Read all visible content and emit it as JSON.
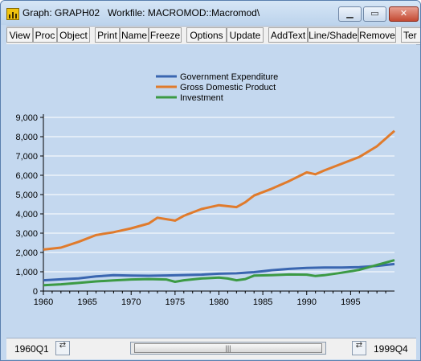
{
  "window": {
    "title": "Graph: GRAPH02   Workfile: MACROMOD::Macromod\\",
    "minimize_label": "▁",
    "maximize_label": "▭",
    "close_label": "✕"
  },
  "toolbar": {
    "buttons": [
      "View",
      "Proc",
      "Object",
      "Print",
      "Name",
      "Freeze",
      "Options",
      "Update",
      "AddText",
      "Line/Shade",
      "Remove",
      "Ter"
    ]
  },
  "status": {
    "start_date": "1960Q1",
    "end_date": "1999Q4",
    "thumb_grip": "|||"
  },
  "colors": {
    "gov": "#3a66b0",
    "gdp": "#e07b2c",
    "inv": "#3c9a44",
    "background": "#c4d8ef"
  },
  "icons": {
    "app": "graph-app-icon",
    "left": "arrow-left-icon",
    "right": "arrow-right-icon"
  },
  "chart_data": {
    "type": "line",
    "title": "",
    "xlabel": "",
    "ylabel": "",
    "grid": true,
    "legend_position": "top-center",
    "x_ticks": [
      "1960",
      "1965",
      "1970",
      "1975",
      "1980",
      "1985",
      "1990",
      "1995"
    ],
    "y_ticks": [
      "0",
      "1,000",
      "2,000",
      "3,000",
      "4,000",
      "5,000",
      "6,000",
      "7,000",
      "8,000",
      "9,000"
    ],
    "xlim": [
      1960,
      2000
    ],
    "ylim": [
      0,
      9000
    ],
    "series": [
      {
        "name": "Government Expenditure",
        "points": [
          [
            1960,
            560
          ],
          [
            1962,
            610
          ],
          [
            1964,
            660
          ],
          [
            1966,
            760
          ],
          [
            1968,
            820
          ],
          [
            1970,
            800
          ],
          [
            1972,
            790
          ],
          [
            1974,
            810
          ],
          [
            1976,
            830
          ],
          [
            1978,
            850
          ],
          [
            1980,
            900
          ],
          [
            1982,
            920
          ],
          [
            1984,
            980
          ],
          [
            1986,
            1080
          ],
          [
            1988,
            1150
          ],
          [
            1990,
            1200
          ],
          [
            1992,
            1220
          ],
          [
            1994,
            1220
          ],
          [
            1996,
            1240
          ],
          [
            1998,
            1300
          ],
          [
            2000,
            1400
          ]
        ]
      },
      {
        "name": "Gross Domestic Product",
        "points": [
          [
            1960,
            2150
          ],
          [
            1962,
            2250
          ],
          [
            1964,
            2550
          ],
          [
            1966,
            2900
          ],
          [
            1968,
            3050
          ],
          [
            1970,
            3250
          ],
          [
            1972,
            3500
          ],
          [
            1973,
            3800
          ],
          [
            1975,
            3650
          ],
          [
            1976,
            3900
          ],
          [
            1978,
            4250
          ],
          [
            1980,
            4450
          ],
          [
            1982,
            4350
          ],
          [
            1983,
            4600
          ],
          [
            1984,
            4950
          ],
          [
            1986,
            5300
          ],
          [
            1988,
            5700
          ],
          [
            1990,
            6150
          ],
          [
            1991,
            6050
          ],
          [
            1992,
            6250
          ],
          [
            1994,
            6600
          ],
          [
            1996,
            6950
          ],
          [
            1998,
            7500
          ],
          [
            2000,
            8300
          ]
        ]
      },
      {
        "name": "Investment",
        "points": [
          [
            1960,
            300
          ],
          [
            1962,
            350
          ],
          [
            1964,
            420
          ],
          [
            1966,
            500
          ],
          [
            1968,
            550
          ],
          [
            1970,
            600
          ],
          [
            1972,
            620
          ],
          [
            1974,
            600
          ],
          [
            1975,
            480
          ],
          [
            1976,
            560
          ],
          [
            1978,
            650
          ],
          [
            1980,
            700
          ],
          [
            1981,
            650
          ],
          [
            1982,
            560
          ],
          [
            1983,
            620
          ],
          [
            1984,
            800
          ],
          [
            1986,
            820
          ],
          [
            1988,
            860
          ],
          [
            1990,
            850
          ],
          [
            1991,
            780
          ],
          [
            1992,
            820
          ],
          [
            1994,
            950
          ],
          [
            1996,
            1100
          ],
          [
            1998,
            1350
          ],
          [
            2000,
            1600
          ]
        ]
      }
    ]
  }
}
